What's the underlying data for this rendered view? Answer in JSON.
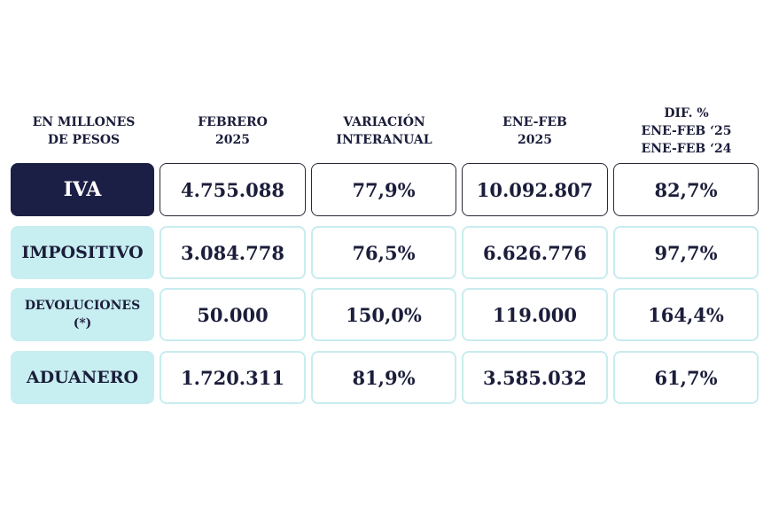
{
  "headers": [
    "EN MILLONES\nDE PESOS",
    "FEBRERO\n2025",
    "VARIACIÓN\nINTERANUAL",
    "ENE-FEB\n2025",
    "DIF. %\nENE-FEB ‘25\nENE-FEB ‘24"
  ],
  "rows": [
    {
      "label": "IVA",
      "values": [
        "4.755.088",
        "77,9%",
        "10.092.807",
        "82,7%"
      ]
    },
    {
      "label": "IMPOSITIVO",
      "values": [
        "3.084.778",
        "76,5%",
        "6.626.776",
        "97,7%"
      ]
    },
    {
      "label": "DEVOLUCIONES",
      "label_note": "(*)",
      "values": [
        "50.000",
        "150,0%",
        "119.000",
        "164,4%"
      ]
    },
    {
      "label": "ADUANERO",
      "values": [
        "1.720.311",
        "81,9%",
        "3.585.032",
        "61,7%"
      ]
    }
  ],
  "colors": {
    "dark_label": "#1c1f45",
    "light_label": "#c7eef1",
    "light_border": "#c8ecef",
    "text": "#1b1d3a"
  }
}
